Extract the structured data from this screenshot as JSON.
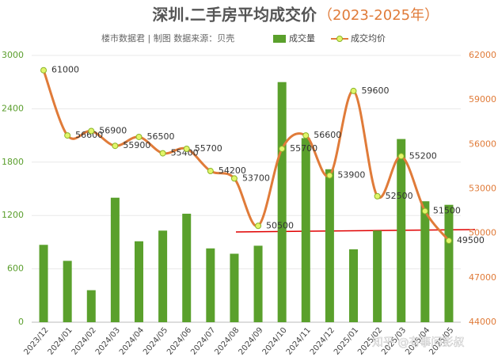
{
  "chart_data": {
    "type": "bar-line",
    "title": "深圳.二手房平均成交价",
    "title_suffix": "（2023-2025年）",
    "source": "楼市数据君 | 制图  数据来源：贝壳",
    "watermark": "知乎 @有事问彭叔",
    "categories": [
      "2023/12",
      "2024/01",
      "2024/02",
      "2024/03",
      "2024/04",
      "2024/05",
      "2024/06",
      "2024/07",
      "2024/08",
      "2024/09",
      "2024/10",
      "2024/11",
      "2024/12",
      "2025/01",
      "2025/02",
      "2025/03",
      "2025/04",
      "2025/05"
    ],
    "series": [
      {
        "name": "成交量",
        "type": "bar",
        "color": "#5aa02c",
        "values": [
          870,
          690,
          360,
          1400,
          910,
          1030,
          1220,
          830,
          770,
          860,
          2700,
          2070,
          1720,
          820,
          1030,
          2060,
          1360,
          1320
        ]
      },
      {
        "name": "成交均价",
        "type": "line",
        "axis": "y2",
        "color": "#e07b39",
        "values": [
          61000,
          56600,
          56900,
          55900,
          56500,
          55400,
          55700,
          54200,
          53700,
          50500,
          55700,
          56600,
          53900,
          59600,
          52500,
          55200,
          51500,
          49500
        ]
      }
    ],
    "ylim": [
      0,
      3000
    ],
    "yticks": [
      0,
      600,
      1200,
      1800,
      2400,
      3000
    ],
    "y2lim": [
      44000,
      62000
    ],
    "y2ticks": [
      44000,
      47000,
      50000,
      53000,
      56000,
      59000,
      62000
    ],
    "legend": "top-right"
  }
}
